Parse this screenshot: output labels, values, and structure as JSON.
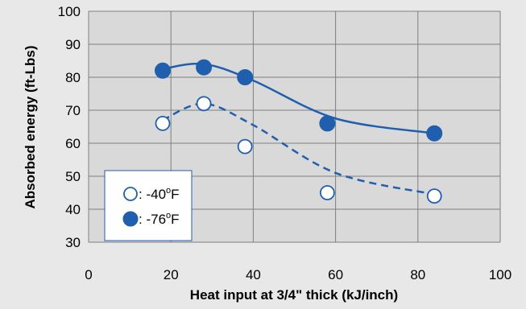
{
  "colors": {
    "background": "#e8e8e8",
    "plot_area": "#d9d9d9",
    "grid": "#7f7f7f",
    "series": "#1f5fae"
  },
  "chart_data": {
    "type": "scatter",
    "title": "",
    "xlabel": "Heat input at 3/4\" thick (kJ/inch)",
    "ylabel": "Absorbed energy (ft-Lbs)",
    "xlim": [
      0,
      100
    ],
    "ylim": [
      30,
      100
    ],
    "xticks": [
      0,
      20,
      40,
      60,
      80,
      100
    ],
    "yticks": [
      30,
      40,
      50,
      60,
      70,
      80,
      90,
      100
    ],
    "grid": true,
    "legend_placement": "bottom-left",
    "series": [
      {
        "legend_label": "-40",
        "legend_unit": "F",
        "legend_sup": "o",
        "marker": "open-circle",
        "trendline": "dashed",
        "x": [
          18,
          28,
          38,
          58,
          84
        ],
        "y": [
          66,
          72,
          59,
          45,
          44
        ],
        "trend_x": [
          18,
          28,
          40,
          60,
          84
        ],
        "trend_y": [
          67,
          72,
          65.5,
          51,
          44.5
        ]
      },
      {
        "legend_label": "-76",
        "legend_unit": "F",
        "legend_sup": "o",
        "marker": "filled-circle",
        "trendline": "solid",
        "x": [
          18,
          28,
          38,
          58,
          84
        ],
        "y": [
          82,
          83,
          80,
          66,
          63
        ],
        "trend_x": [
          18,
          28,
          40,
          60,
          84
        ],
        "trend_y": [
          82.5,
          84,
          79,
          67.5,
          63
        ]
      }
    ]
  }
}
